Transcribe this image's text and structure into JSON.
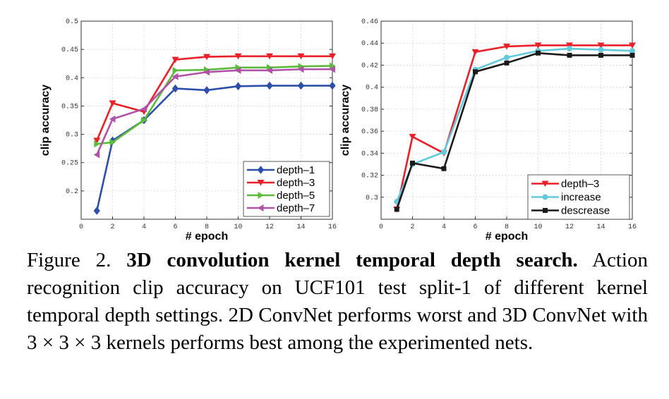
{
  "chart_data": [
    {
      "type": "line",
      "title": "",
      "xlabel": "# epoch",
      "ylabel": "clip accuracy",
      "xlim": [
        0,
        16
      ],
      "ylim": [
        0.15,
        0.5
      ],
      "xticks": [
        0,
        2,
        4,
        6,
        8,
        10,
        12,
        14,
        16
      ],
      "xtick_labels": [
        "0",
        "2",
        "4",
        "6",
        "8",
        "10",
        "12",
        "14",
        "16"
      ],
      "yticks": [
        0.2,
        0.25,
        0.3,
        0.35,
        0.4,
        0.45,
        0.5
      ],
      "ytick_labels": [
        "0.2",
        "0.25",
        "0.3",
        "0.35",
        "0.4",
        "0.45",
        "0.5"
      ],
      "grid": true,
      "legend": "bottom-right",
      "x": [
        1,
        2,
        4,
        6,
        8,
        10,
        12,
        14,
        16
      ],
      "series": [
        {
          "name": "depth–1",
          "color": "#2e4fa8",
          "marker": "diamond",
          "values": [
            0.165,
            0.289,
            0.325,
            0.381,
            0.378,
            0.385,
            0.386,
            0.386,
            0.386
          ]
        },
        {
          "name": "depth–3",
          "color": "#e8202a",
          "marker": "triangle-down",
          "values": [
            0.289,
            0.355,
            0.34,
            0.432,
            0.437,
            0.438,
            0.438,
            0.438,
            0.438
          ]
        },
        {
          "name": "depth–5",
          "color": "#5bbb3b",
          "marker": "triangle-right",
          "values": [
            0.283,
            0.286,
            0.325,
            0.413,
            0.414,
            0.418,
            0.418,
            0.42,
            0.421
          ]
        },
        {
          "name": "depth–7",
          "color": "#b052a8",
          "marker": "triangle-left",
          "values": [
            0.264,
            0.327,
            0.345,
            0.402,
            0.41,
            0.413,
            0.413,
            0.415,
            0.415
          ]
        }
      ]
    },
    {
      "type": "line",
      "title": "",
      "xlabel": "# epoch",
      "ylabel": "clip accuracy",
      "xlim": [
        0,
        16
      ],
      "ylim": [
        0.28,
        0.46
      ],
      "xticks": [
        0,
        2,
        4,
        6,
        8,
        10,
        12,
        14,
        16
      ],
      "xtick_labels": [
        "0",
        "2",
        "4",
        "6",
        "8",
        "10",
        "12",
        "14",
        "16"
      ],
      "yticks": [
        0.3,
        0.32,
        0.34,
        0.36,
        0.38,
        0.4,
        0.42,
        0.44,
        0.46
      ],
      "ytick_labels": [
        "0.3",
        "0.32",
        "0.34",
        "0.36",
        "0.38",
        "0.4",
        "0.42",
        "0.44",
        "0.46"
      ],
      "grid": true,
      "legend": "bottom-right",
      "x": [
        1,
        2,
        4,
        6,
        8,
        10,
        12,
        14,
        16
      ],
      "series": [
        {
          "name": "depth–3",
          "color": "#e8202a",
          "marker": "triangle-down",
          "values": [
            0.289,
            0.355,
            0.34,
            0.432,
            0.437,
            0.438,
            0.438,
            0.438,
            0.438
          ]
        },
        {
          "name": "increase",
          "color": "#62c9dd",
          "marker": "circle",
          "values": [
            0.296,
            0.33,
            0.341,
            0.416,
            0.427,
            0.433,
            0.435,
            0.434,
            0.433
          ]
        },
        {
          "name": "descrease",
          "color": "#1a1a1a",
          "marker": "square",
          "values": [
            0.289,
            0.331,
            0.326,
            0.414,
            0.422,
            0.431,
            0.429,
            0.429,
            0.429
          ]
        }
      ]
    }
  ],
  "caption": {
    "label": "Figure 2.",
    "bold": "3D convolution kernel temporal depth search.",
    "text": "Action recognition clip accuracy on UCF101 test split-1 of different kernel temporal depth settings. 2D ConvNet performs worst and 3D ConvNet with 3 × 3 × 3 kernels performs best among the experimented nets."
  }
}
